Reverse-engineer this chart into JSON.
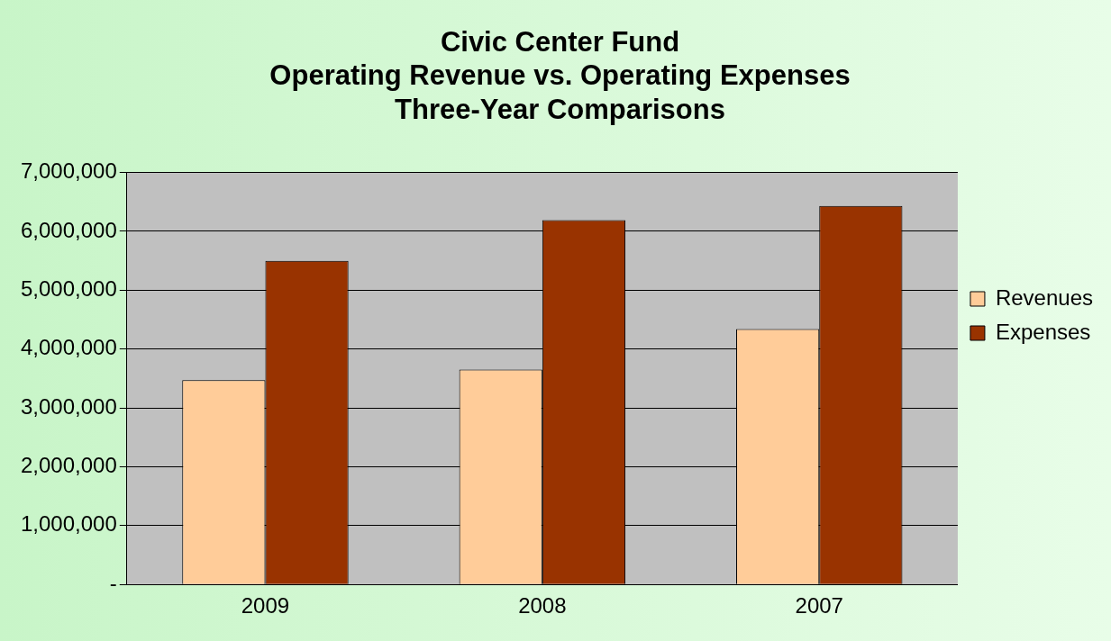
{
  "chart_data": {
    "type": "bar",
    "title": "Civic Center Fund\nOperating Revenue vs. Operating Expenses\nThree-Year Comparisons",
    "categories": [
      "2009",
      "2008",
      "2007"
    ],
    "series": [
      {
        "name": "Revenues",
        "color": "#ffcc99",
        "values": [
          3470000,
          3650000,
          4340000
        ]
      },
      {
        "name": "Expenses",
        "color": "#993300",
        "values": [
          5500000,
          6190000,
          6430000
        ]
      }
    ],
    "ylim": [
      0,
      7000000
    ],
    "yticks": [
      {
        "value": 0,
        "label": "-"
      },
      {
        "value": 1000000,
        "label": "1,000,000"
      },
      {
        "value": 2000000,
        "label": "2,000,000"
      },
      {
        "value": 3000000,
        "label": "3,000,000"
      },
      {
        "value": 4000000,
        "label": "4,000,000"
      },
      {
        "value": 5000000,
        "label": "5,000,000"
      },
      {
        "value": 6000000,
        "label": "6,000,000"
      },
      {
        "value": 7000000,
        "label": "7,000,000"
      }
    ],
    "grid": "y",
    "legend": "right"
  }
}
